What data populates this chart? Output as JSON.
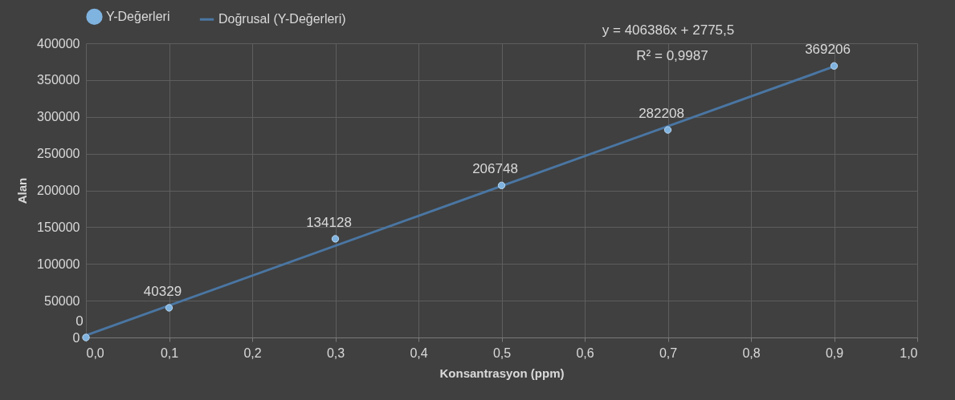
{
  "chart_data": {
    "type": "scatter",
    "xlabel": "Konsantrasyon (ppm)",
    "ylabel": "Alan",
    "x": [
      0,
      0.1,
      0.3,
      0.5,
      0.7,
      0.9
    ],
    "series": [
      {
        "name": "Y-Değerleri",
        "color": "#7fb3e0",
        "marker": "circle",
        "values": [
          0,
          40329,
          134128,
          206748,
          282208,
          369206
        ],
        "value_labels": [
          "0",
          "40329",
          "134128",
          "206748",
          "282208",
          "369206"
        ]
      },
      {
        "name": "Doğrusal (Y-Değerleri)",
        "type": "line",
        "color": "#4a76a3",
        "marker": "none",
        "x": [
          0,
          0.9
        ],
        "values": [
          2800,
          368500
        ]
      }
    ],
    "xlim": [
      0,
      1
    ],
    "xticks": [
      {
        "value": 0,
        "label": "0,0"
      },
      {
        "value": 0.1,
        "label": "0,1"
      },
      {
        "value": 0.2,
        "label": "0,2"
      },
      {
        "value": 0.3,
        "label": "0,3"
      },
      {
        "value": 0.4,
        "label": "0,4"
      },
      {
        "value": 0.5,
        "label": "0,5"
      },
      {
        "value": 0.6,
        "label": "0,6"
      },
      {
        "value": 0.7,
        "label": "0,7"
      },
      {
        "value": 0.8,
        "label": "0,8"
      },
      {
        "value": 0.9,
        "label": "0,9"
      },
      {
        "value": 1,
        "label": "1,0"
      }
    ],
    "ylim": [
      0,
      400000
    ],
    "yticks": [
      0,
      50000,
      100000,
      150000,
      200000,
      250000,
      300000,
      350000,
      400000
    ],
    "annotations": [
      "y = 406386x + 2775,5",
      "R² = 0,9987"
    ],
    "grid": true,
    "legend": "top"
  }
}
